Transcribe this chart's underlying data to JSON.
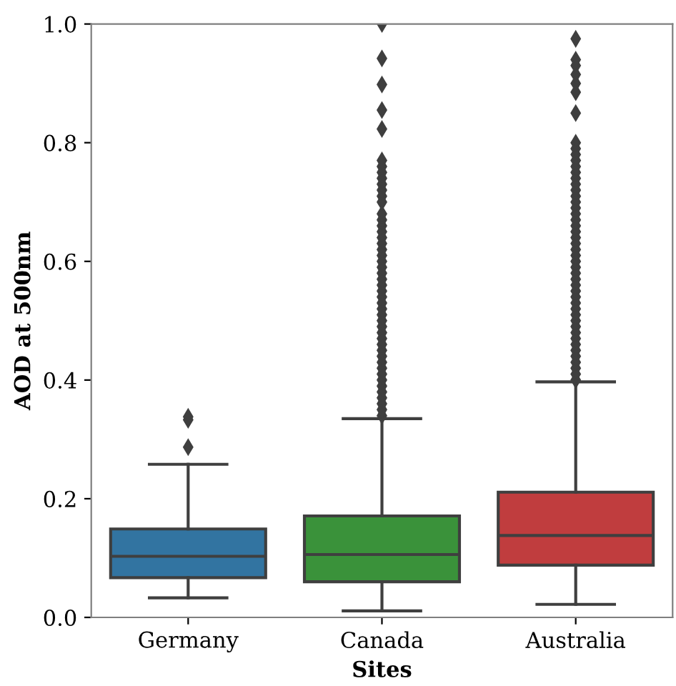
{
  "chart_data": {
    "type": "box",
    "xlabel": "Sites",
    "ylabel": "AOD at 500nm",
    "categories": [
      "Germany",
      "Canada",
      "Australia"
    ],
    "colors": [
      "#3274a1",
      "#3a923a",
      "#c03d3e"
    ],
    "boxes": [
      {
        "low": 0.033,
        "q1": 0.067,
        "median": 0.103,
        "q3": 0.149,
        "high": 0.258,
        "outliers": [
          0.287,
          0.333,
          0.338
        ]
      },
      {
        "low": 0.011,
        "q1": 0.06,
        "median": 0.106,
        "q3": 0.171,
        "high": 0.335,
        "outliers": [
          0.34,
          0.35,
          0.36,
          0.37,
          0.38,
          0.39,
          0.4,
          0.41,
          0.42,
          0.43,
          0.44,
          0.45,
          0.46,
          0.47,
          0.48,
          0.49,
          0.5,
          0.51,
          0.52,
          0.53,
          0.54,
          0.55,
          0.56,
          0.57,
          0.58,
          0.59,
          0.6,
          0.61,
          0.62,
          0.63,
          0.64,
          0.65,
          0.66,
          0.67,
          0.68,
          0.7,
          0.71,
          0.72,
          0.73,
          0.74,
          0.75,
          0.76,
          0.77,
          0.823,
          0.855,
          0.898,
          0.942,
          1.0
        ]
      },
      {
        "low": 0.022,
        "q1": 0.088,
        "median": 0.138,
        "q3": 0.211,
        "high": 0.397,
        "outliers": [
          0.4,
          0.41,
          0.42,
          0.43,
          0.44,
          0.45,
          0.46,
          0.47,
          0.48,
          0.49,
          0.5,
          0.51,
          0.52,
          0.53,
          0.54,
          0.55,
          0.56,
          0.57,
          0.58,
          0.59,
          0.6,
          0.61,
          0.62,
          0.63,
          0.64,
          0.65,
          0.66,
          0.67,
          0.68,
          0.69,
          0.7,
          0.71,
          0.72,
          0.73,
          0.74,
          0.75,
          0.76,
          0.77,
          0.78,
          0.79,
          0.8,
          0.85,
          0.885,
          0.9,
          0.915,
          0.93,
          0.94,
          0.975
        ]
      }
    ],
    "ylim": [
      0.0,
      1.0
    ],
    "yticks": [
      {
        "value": 0.0,
        "label": "0.0"
      },
      {
        "value": 0.2,
        "label": "0.2"
      },
      {
        "value": 0.4,
        "label": "0.4"
      },
      {
        "value": 0.6,
        "label": "0.6"
      },
      {
        "value": 0.8,
        "label": "0.8"
      },
      {
        "value": 1.0,
        "label": "1.0"
      }
    ],
    "marker": "diamond",
    "grid": false,
    "legend": false
  }
}
